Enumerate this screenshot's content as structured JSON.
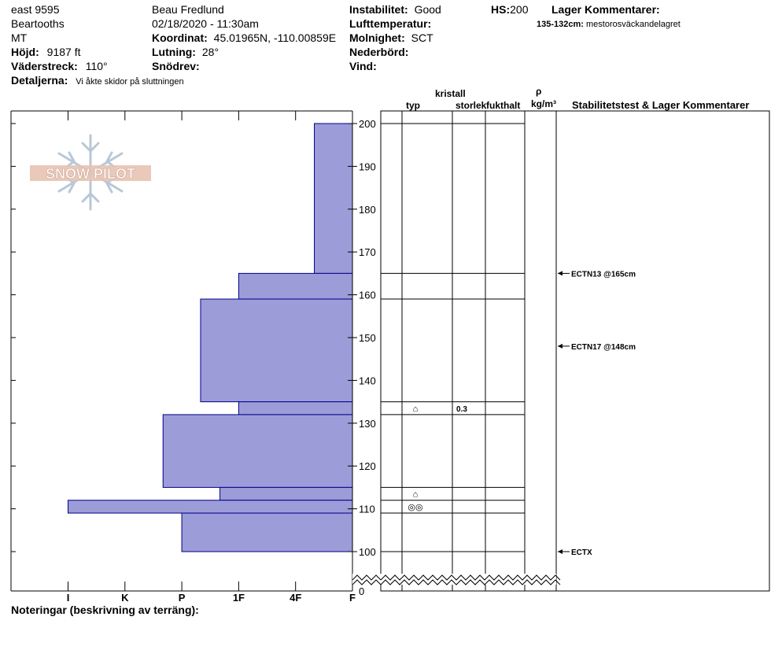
{
  "header": {
    "location_name": "east 9595",
    "range": "Beartooths",
    "state": "MT",
    "elevation_label": "Höjd:",
    "elevation_value": "9187 ft",
    "aspect_label": "Väderstreck:",
    "aspect_value": "110°",
    "details_label": "Detaljerna:",
    "details_value": "Vi åkte skidor på sluttningen",
    "observer": "Beau  Fredlund",
    "datetime": "02/18/2020 - 11:30am",
    "coord_label": "Koordinat:",
    "coord_value": "45.01965N, -110.00859E",
    "slope_label": "Lutning:",
    "slope_value": "28°",
    "wind_loading_label": "Snödrev:",
    "instability_label": "Instabilitet:",
    "instability_value": "Good",
    "air_temp_label": "Lufttemperatur:",
    "sky_label": "Molnighet:",
    "sky_value": "SCT",
    "precip_label": "Nederbörd:",
    "wind_label": "Vind:",
    "hs_label": "HS:",
    "hs_value": "200",
    "layer_comments_label": "Lager Kommentarer:",
    "layer_comment_range": "135-132cm:",
    "layer_comment_text": "mestorosväckandelagret"
  },
  "logo": {
    "text": "SNOW PILOT"
  },
  "columns": {
    "crystal": "kristall",
    "type": "typ",
    "size": "storlek",
    "moisture": "fukthalt",
    "rho": "ρ",
    "density_unit": "kg/m³",
    "stability": "Stabilitetstest & Lager Kommentarer"
  },
  "footer": {
    "notes_label": "Noteringar (beskrivning av terräng):"
  },
  "colors": {
    "hardness_fill": "#9c9cd8",
    "hardness_stroke": "#00008b"
  },
  "chart_data": {
    "type": "snow-profile",
    "hardness_axis": [
      "I",
      "K",
      "P",
      "1F",
      "4F",
      "F"
    ],
    "depth_axis": {
      "min": 100,
      "max": 200,
      "ticks": [
        100,
        110,
        120,
        130,
        140,
        150,
        160,
        170,
        180,
        190,
        200
      ],
      "bottom_label": "0"
    },
    "layers": [
      {
        "top": 200,
        "bottom": 165,
        "hardness": 0.67
      },
      {
        "top": 165,
        "bottom": 159,
        "hardness": 2.0
      },
      {
        "top": 159,
        "bottom": 135,
        "hardness": 2.67
      },
      {
        "top": 135,
        "bottom": 132,
        "hardness": 2.0
      },
      {
        "top": 132,
        "bottom": 115,
        "hardness": 3.33
      },
      {
        "top": 115,
        "bottom": 112,
        "hardness": 2.33
      },
      {
        "top": 112,
        "bottom": 109,
        "hardness": 5.0
      },
      {
        "top": 109,
        "bottom": 100,
        "hardness": 3.0
      }
    ],
    "grain_rows": [
      {
        "top": 135,
        "bottom": 132,
        "symbol": "⌂",
        "size": "0.3"
      },
      {
        "top": 115,
        "bottom": 112,
        "symbol": "⌂",
        "size": ""
      },
      {
        "top": 112,
        "bottom": 109,
        "symbol": "◎◎",
        "size": ""
      }
    ],
    "stability_tests": [
      {
        "depth": 165,
        "label": "ECTN13 @165cm"
      },
      {
        "depth": 148,
        "label": "ECTN17 @148cm"
      },
      {
        "depth": 100,
        "label": "ECTX"
      }
    ]
  }
}
